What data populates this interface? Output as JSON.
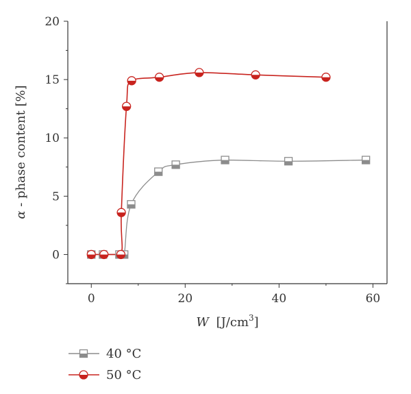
{
  "chart_data": {
    "type": "line",
    "x_axis": {
      "label_var": "W",
      "label_unit": "[J/cm",
      "label_unit_sup": "3",
      "label_unit_end": "]",
      "range": [
        -5,
        63
      ],
      "ticks": [
        0,
        20,
        40,
        60
      ]
    },
    "y_axis": {
      "label_var": "α",
      "label_text": " - phase content [%]",
      "range": [
        -2.5,
        20
      ],
      "ticks": [
        0,
        5,
        10,
        15,
        20
      ]
    },
    "grid": false,
    "legend_position": "bottom-left",
    "series": [
      {
        "name": "40 °C",
        "marker": "square-half",
        "color": "#8c8c8c",
        "points": [
          [
            0,
            0
          ],
          [
            2.5,
            0
          ],
          [
            6,
            0
          ],
          [
            7,
            0
          ],
          [
            8.5,
            4.3
          ],
          [
            14.3,
            7.1
          ],
          [
            18,
            7.7
          ],
          [
            28.5,
            8.1
          ],
          [
            42,
            8.0
          ],
          [
            58.5,
            8.1
          ]
        ]
      },
      {
        "name": "50 °C",
        "marker": "circle-half",
        "color": "#c8231e",
        "points": [
          [
            0,
            0
          ],
          [
            2.7,
            0
          ],
          [
            6.3,
            0
          ],
          [
            6.4,
            3.6
          ],
          [
            7.5,
            12.7
          ],
          [
            8.6,
            14.9
          ],
          [
            14.5,
            15.2
          ],
          [
            23,
            15.6
          ],
          [
            35,
            15.4
          ],
          [
            50,
            15.2
          ]
        ]
      }
    ]
  }
}
